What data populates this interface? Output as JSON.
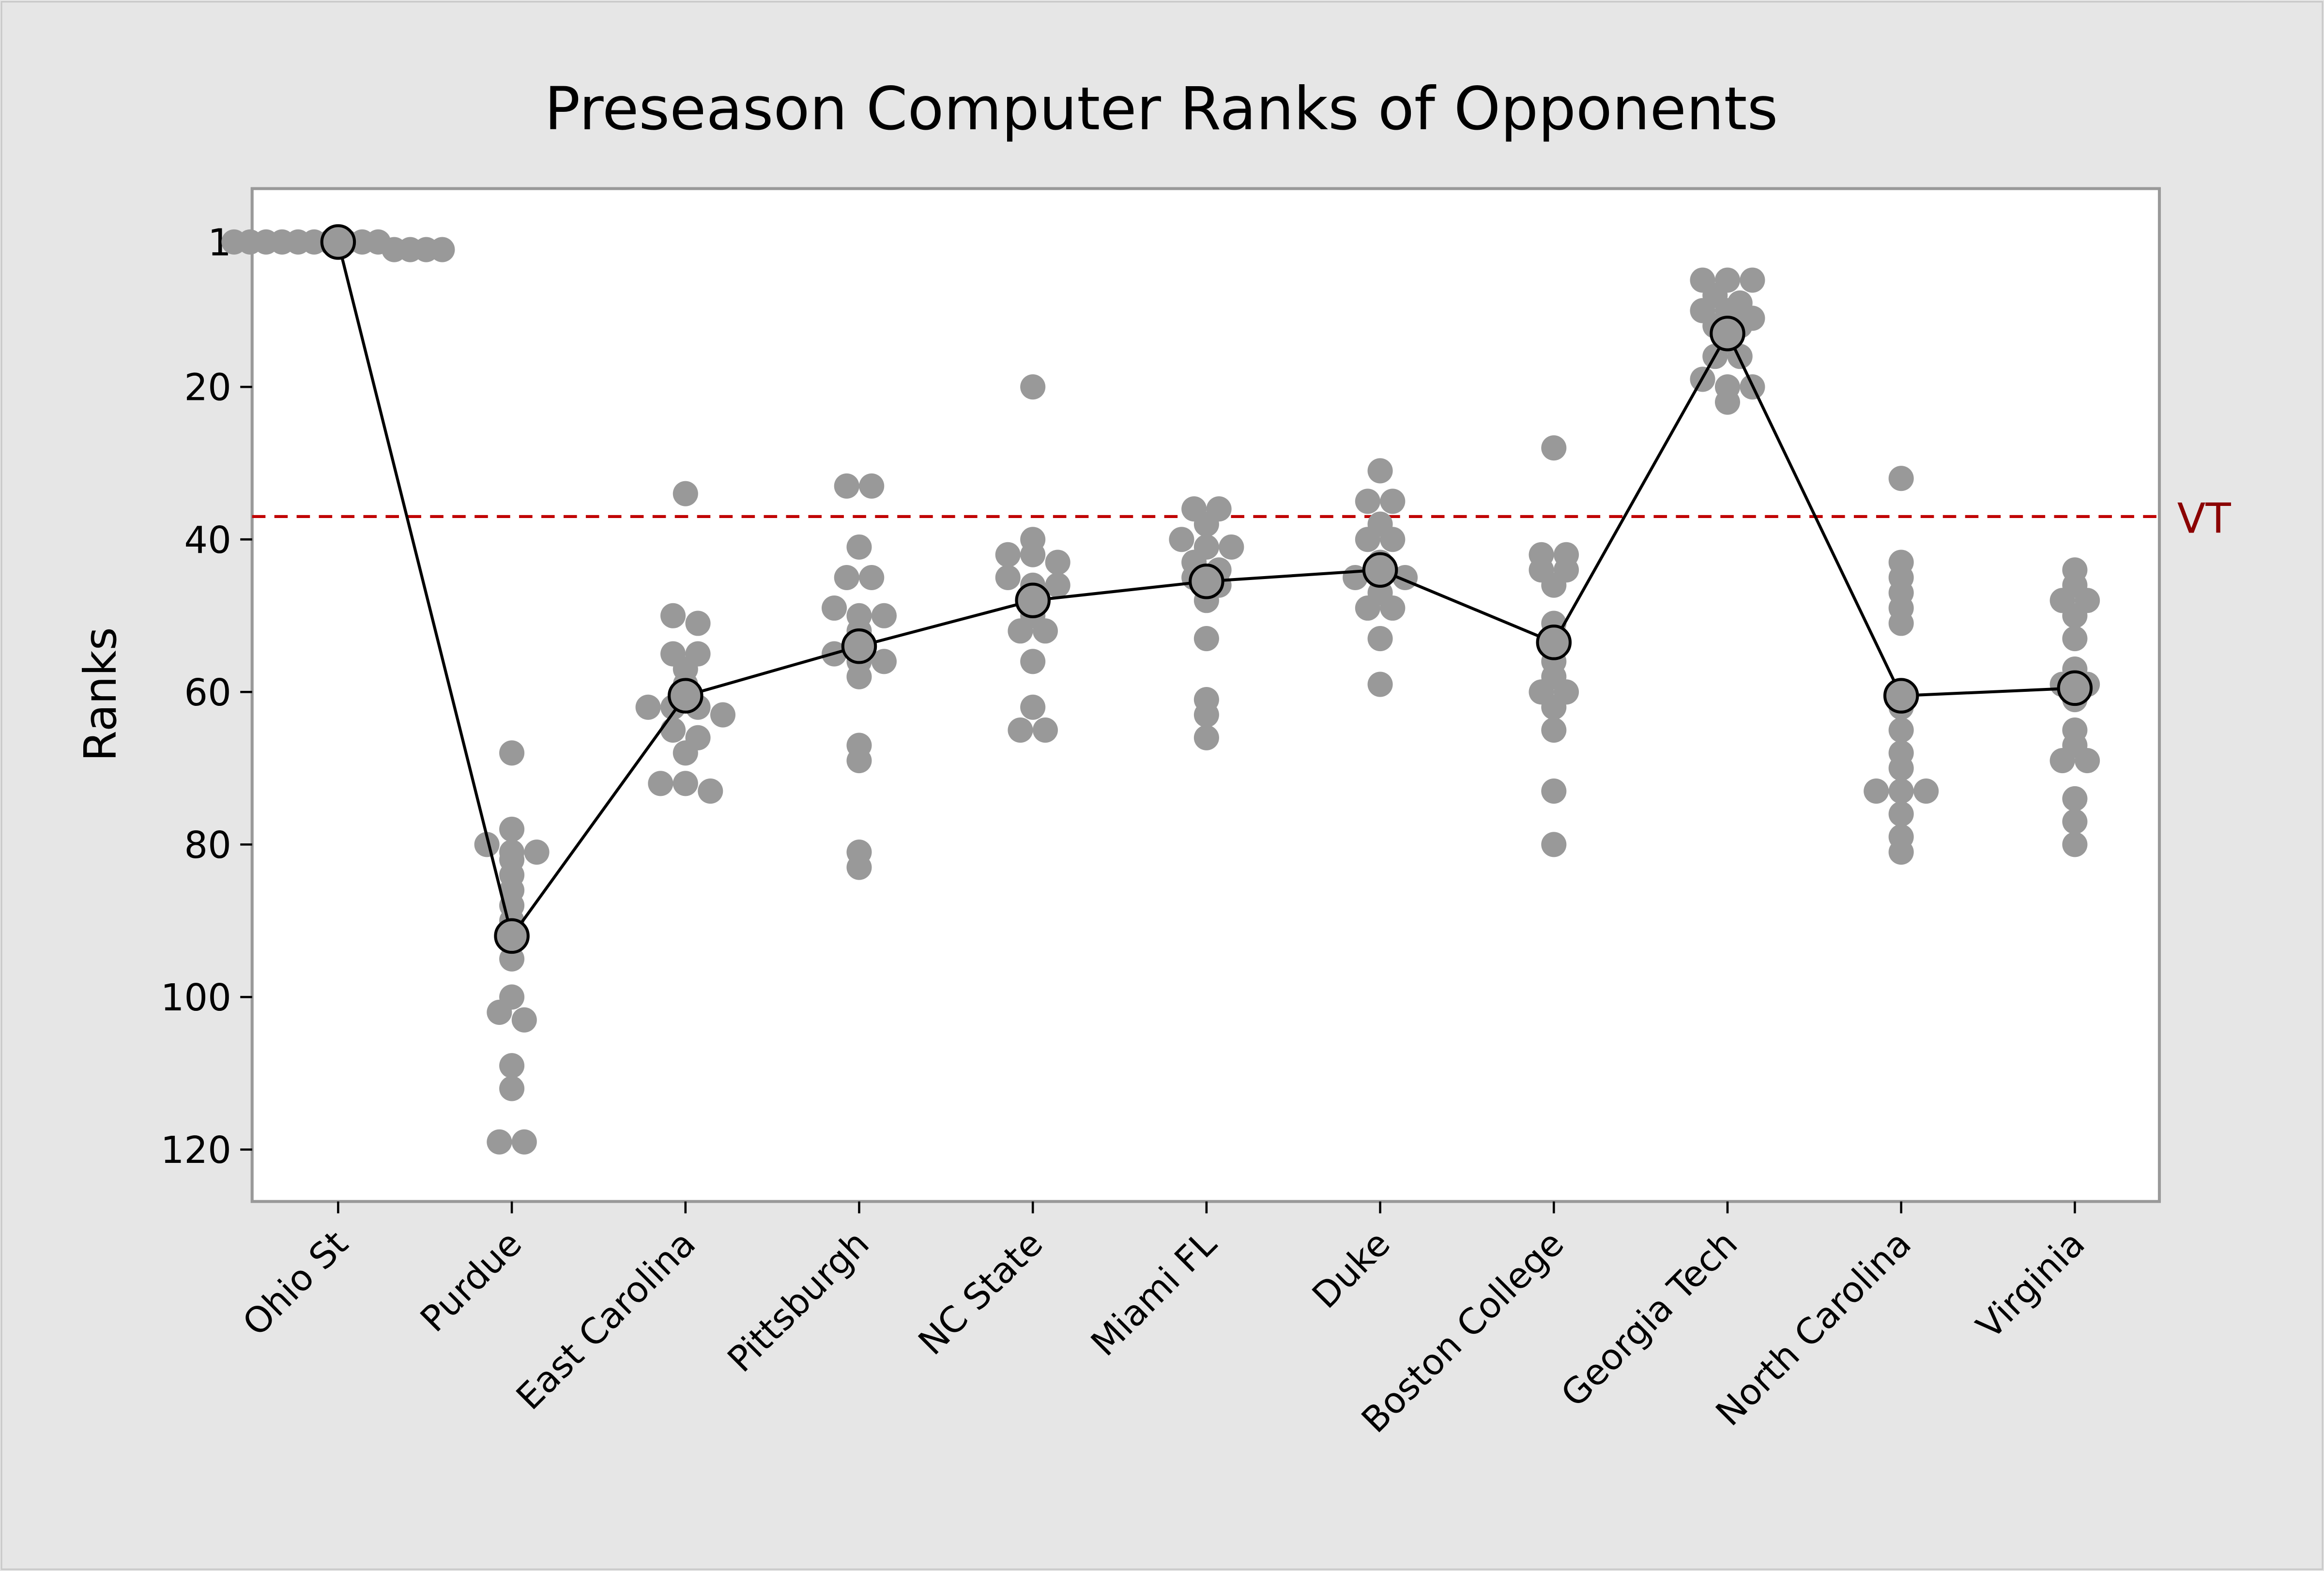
{
  "chart_data": {
    "type": "scatter",
    "subtype": "individual value plot with mean connect line",
    "title": "Preseason Computer Ranks of Opponents",
    "xlabel": "",
    "ylabel": "Ranks",
    "y_inverted": true,
    "ylim": [
      -6,
      127
    ],
    "yticks": [
      1,
      20,
      40,
      60,
      80,
      100,
      120
    ],
    "grid": false,
    "categories": [
      "Ohio St",
      "Purdue",
      "East Carolina",
      "Pittsburgh",
      "NC State",
      "Miami FL",
      "Duke",
      "Boston College",
      "Georgia Tech",
      "North Carolina",
      "Virginia"
    ],
    "points": [
      [
        1,
        1,
        1,
        1,
        1,
        1,
        1,
        1,
        1,
        1,
        2,
        2,
        2,
        2
      ],
      [
        68,
        78,
        80,
        81,
        81,
        82,
        84,
        86,
        88,
        90,
        92,
        95,
        100,
        102,
        103,
        109,
        112,
        119,
        119
      ],
      [
        34,
        50,
        51,
        55,
        55,
        57,
        59,
        62,
        62,
        62,
        63,
        65,
        66,
        68,
        72,
        72,
        73
      ],
      [
        33,
        33,
        41,
        45,
        45,
        49,
        50,
        50,
        52,
        55,
        56,
        56,
        58,
        67,
        69,
        81,
        83
      ],
      [
        20,
        40,
        42,
        42,
        43,
        45,
        46,
        46,
        50,
        52,
        52,
        56,
        62,
        65,
        65
      ],
      [
        36,
        36,
        38,
        40,
        41,
        41,
        43,
        44,
        45,
        46,
        48,
        53,
        61,
        63,
        66
      ],
      [
        31,
        35,
        35,
        38,
        40,
        40,
        43,
        45,
        45,
        45,
        47,
        49,
        49,
        53,
        59
      ],
      [
        28,
        42,
        42,
        44,
        44,
        46,
        51,
        53,
        56,
        58,
        60,
        60,
        62,
        65,
        73,
        80
      ],
      [
        6,
        6,
        6,
        8,
        9,
        10,
        10,
        11,
        12,
        12,
        14,
        16,
        16,
        19,
        20,
        20,
        22
      ],
      [
        32,
        43,
        45,
        47,
        49,
        51,
        60,
        62,
        65,
        68,
        70,
        73,
        73,
        73,
        76,
        79,
        81
      ],
      [
        44,
        46,
        48,
        48,
        50,
        53,
        57,
        59,
        59,
        61,
        65,
        67,
        69,
        69,
        74,
        77,
        80
      ]
    ],
    "means": [
      1,
      92,
      60.5,
      54,
      48,
      45.5,
      44,
      53.5,
      13,
      60.5,
      59.5
    ],
    "reference_line": {
      "label": "VT",
      "value": 37,
      "color": "#c00000",
      "label_color": "#8b0000"
    },
    "colors": {
      "points": "#999999",
      "mean_line": "#000000",
      "background": "#e6e6e6",
      "plot_bg": "#ffffff",
      "frame": "#999999"
    }
  }
}
